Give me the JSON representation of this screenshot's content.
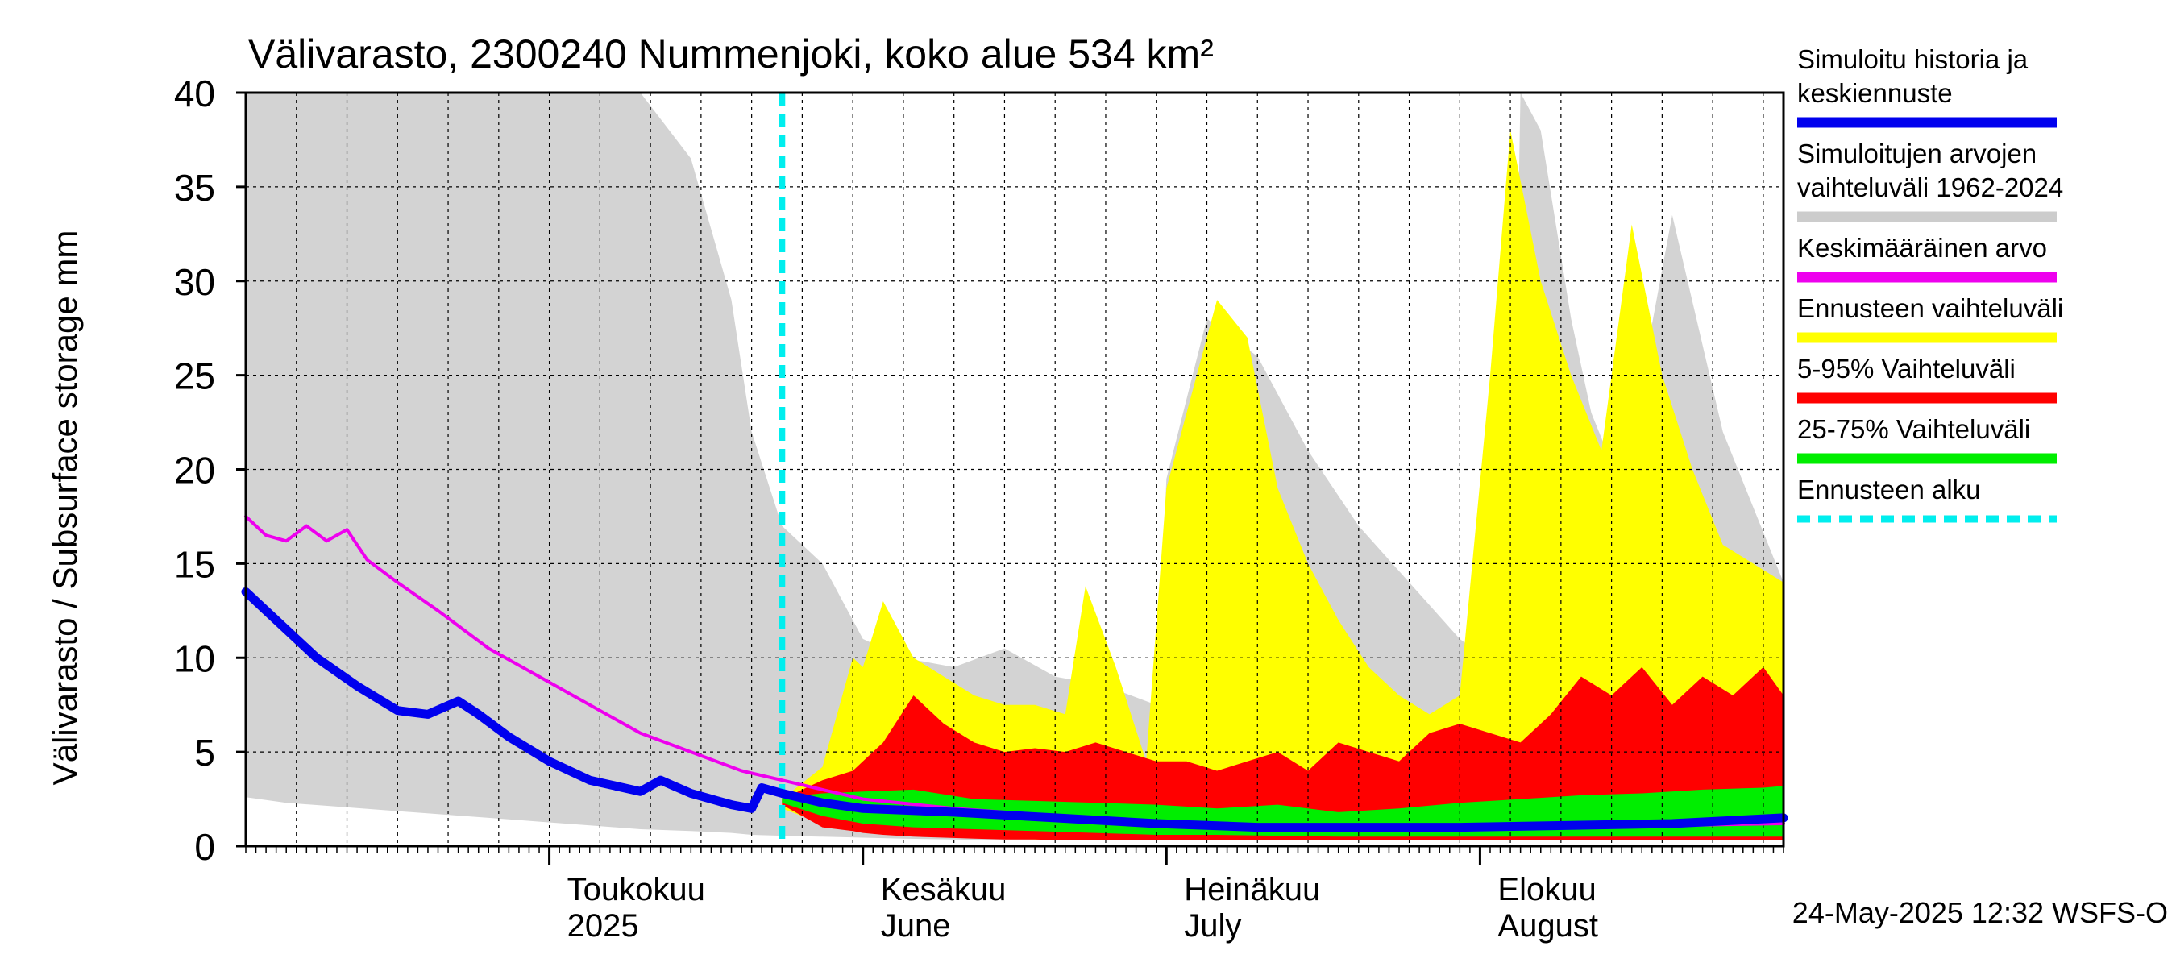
{
  "chart_data": {
    "type": "area",
    "title": "Välivarasto, 2300240 Nummenjoki, koko alue 534 km²",
    "ylabel": "Välivarasto / Subsurface storage  mm",
    "ylim": [
      0,
      40
    ],
    "yticks": [
      0,
      5,
      10,
      15,
      20,
      25,
      30,
      35,
      40
    ],
    "xlim": [
      "2025-04-01",
      "2025-08-31"
    ],
    "grid": true,
    "forecast_start": "2025-05-24",
    "month_labels": [
      {
        "date": "2025-05-01",
        "line1": "Toukokuu",
        "line2": "2025"
      },
      {
        "date": "2025-06-01",
        "line1": "Kesäkuu",
        "line2": "June"
      },
      {
        "date": "2025-07-01",
        "line1": "Heinäkuu",
        "line2": "July"
      },
      {
        "date": "2025-08-01",
        "line1": "Elokuu",
        "line2": "August"
      }
    ],
    "legend_position": "right",
    "legend": [
      {
        "label_lines": [
          "Simuloitu historia ja",
          "keskiennuste"
        ],
        "color": "#0000ee",
        "style": "solid"
      },
      {
        "label_lines": [
          "Simuloitujen arvojen",
          "vaihteluväli 1962-2024"
        ],
        "color": "#cccccc",
        "style": "solid"
      },
      {
        "label_lines": [
          "Keskimääräinen arvo"
        ],
        "color": "#ee00ee",
        "style": "solid"
      },
      {
        "label_lines": [
          "Ennusteen vaihteluväli"
        ],
        "color": "#ffff00",
        "style": "solid"
      },
      {
        "label_lines": [
          "5-95% Vaihteluväli"
        ],
        "color": "#ff0000",
        "style": "solid"
      },
      {
        "label_lines": [
          "25-75% Vaihteluväli"
        ],
        "color": "#00ee00",
        "style": "solid"
      },
      {
        "label_lines": [
          "Ennusteen alku"
        ],
        "color": "#00eeee",
        "style": "dashed"
      }
    ],
    "footer": "24-May-2025 12:32 WSFS-O",
    "series": [
      {
        "name": "Simuloitujen arvojen vaihteluväli 1962-2024",
        "kind": "band",
        "color": "#d3d3d3",
        "x": [
          "2025-04-01",
          "2025-04-05",
          "2025-04-10",
          "2025-04-15",
          "2025-04-20",
          "2025-04-25",
          "2025-04-30",
          "2025-05-05",
          "2025-05-10",
          "2025-05-15",
          "2025-05-19",
          "2025-05-21",
          "2025-05-24",
          "2025-05-28",
          "2025-06-01",
          "2025-06-05",
          "2025-06-10",
          "2025-06-15",
          "2025-06-20",
          "2025-06-25",
          "2025-06-30",
          "2025-07-01",
          "2025-07-05",
          "2025-07-10",
          "2025-07-15",
          "2025-07-20",
          "2025-07-25",
          "2025-07-30",
          "2025-08-04",
          "2025-08-05",
          "2025-08-07",
          "2025-08-10",
          "2025-08-12",
          "2025-08-15",
          "2025-08-20",
          "2025-08-25",
          "2025-08-31"
        ],
        "low": [
          2.6,
          2.3,
          2.1,
          1.9,
          1.7,
          1.5,
          1.3,
          1.1,
          0.9,
          0.8,
          0.7,
          0.6,
          0.55,
          0.5,
          0.45,
          0.4,
          0.35,
          0.3,
          0.3,
          0.3,
          0.3,
          0.3,
          0.3,
          0.3,
          0.3,
          0.3,
          0.3,
          0.3,
          0.3,
          0.3,
          0.3,
          0.3,
          0.3,
          0.3,
          0.3,
          0.3,
          0.3
        ],
        "high": [
          40,
          40,
          40,
          40,
          40,
          40,
          40,
          40,
          40,
          36.5,
          29,
          22,
          17,
          15,
          11,
          10,
          9.5,
          10.5,
          9,
          8.5,
          7.5,
          19.5,
          28,
          26,
          21,
          17,
          14,
          11,
          9,
          40,
          38,
          28,
          23,
          19,
          33.5,
          22,
          14
        ]
      },
      {
        "name": "Ennusteen vaihteluväli",
        "kind": "band",
        "color": "#ffff00",
        "x": [
          "2025-05-24",
          "2025-05-28",
          "2025-05-31",
          "2025-06-01",
          "2025-06-03",
          "2025-06-06",
          "2025-06-09",
          "2025-06-12",
          "2025-06-15",
          "2025-06-18",
          "2025-06-21",
          "2025-06-23",
          "2025-06-26",
          "2025-06-29",
          "2025-07-01",
          "2025-07-04",
          "2025-07-06",
          "2025-07-09",
          "2025-07-12",
          "2025-07-15",
          "2025-07-18",
          "2025-07-21",
          "2025-07-24",
          "2025-07-27",
          "2025-07-30",
          "2025-08-02",
          "2025-08-04",
          "2025-08-07",
          "2025-08-10",
          "2025-08-13",
          "2025-08-16",
          "2025-08-19",
          "2025-08-22",
          "2025-08-25",
          "2025-08-28",
          "2025-08-31"
        ],
        "low": [
          2.0,
          1.2,
          0.9,
          0.8,
          0.7,
          0.6,
          0.5,
          0.45,
          0.4,
          0.35,
          0.3,
          0.3,
          0.3,
          0.3,
          0.3,
          0.3,
          0.3,
          0.3,
          0.3,
          0.3,
          0.3,
          0.3,
          0.3,
          0.3,
          0.3,
          0.3,
          0.3,
          0.3,
          0.3,
          0.3,
          0.3,
          0.3,
          0.3,
          0.3,
          0.3,
          0.3
        ],
        "high": [
          2.5,
          4.2,
          10,
          9.5,
          13,
          10,
          9,
          8,
          7.5,
          7.5,
          7,
          13.8,
          9.5,
          4.5,
          19,
          25,
          29,
          27,
          19,
          15,
          12,
          9.5,
          8,
          7,
          8,
          25,
          38,
          30,
          25,
          21,
          33,
          25,
          20,
          16,
          15,
          14
        ]
      },
      {
        "name": "5-95% Vaihteluväli",
        "kind": "band",
        "color": "#ff0000",
        "x": [
          "2025-05-24",
          "2025-05-28",
          "2025-05-31",
          "2025-06-01",
          "2025-06-03",
          "2025-06-06",
          "2025-06-09",
          "2025-06-12",
          "2025-06-15",
          "2025-06-18",
          "2025-06-21",
          "2025-06-24",
          "2025-06-27",
          "2025-06-30",
          "2025-07-03",
          "2025-07-06",
          "2025-07-09",
          "2025-07-12",
          "2025-07-15",
          "2025-07-18",
          "2025-07-21",
          "2025-07-24",
          "2025-07-27",
          "2025-07-30",
          "2025-08-02",
          "2025-08-05",
          "2025-08-08",
          "2025-08-11",
          "2025-08-14",
          "2025-08-17",
          "2025-08-20",
          "2025-08-23",
          "2025-08-26",
          "2025-08-29",
          "2025-08-31"
        ],
        "low": [
          2.2,
          1.0,
          0.8,
          0.7,
          0.6,
          0.5,
          0.45,
          0.4,
          0.35,
          0.35,
          0.3,
          0.3,
          0.3,
          0.3,
          0.3,
          0.3,
          0.3,
          0.3,
          0.3,
          0.3,
          0.3,
          0.3,
          0.3,
          0.3,
          0.3,
          0.3,
          0.3,
          0.3,
          0.3,
          0.3,
          0.3,
          0.3,
          0.3,
          0.3,
          0.3
        ],
        "high": [
          2.5,
          3.5,
          4.0,
          4.5,
          5.5,
          8.0,
          6.5,
          5.5,
          5.0,
          5.2,
          5.0,
          5.5,
          5.0,
          4.5,
          4.5,
          4.0,
          4.5,
          5.0,
          4.0,
          5.5,
          5.0,
          4.5,
          6.0,
          6.5,
          6.0,
          5.5,
          7.0,
          9.0,
          8.0,
          9.5,
          7.5,
          9.0,
          8.0,
          9.5,
          8.0
        ]
      },
      {
        "name": "25-75% Vaihteluväli",
        "kind": "band",
        "color": "#00ee00",
        "x": [
          "2025-05-24",
          "2025-05-28",
          "2025-06-01",
          "2025-06-06",
          "2025-06-12",
          "2025-06-18",
          "2025-06-24",
          "2025-06-30",
          "2025-07-06",
          "2025-07-12",
          "2025-07-18",
          "2025-07-24",
          "2025-07-30",
          "2025-08-05",
          "2025-08-11",
          "2025-08-17",
          "2025-08-23",
          "2025-08-29",
          "2025-08-31"
        ],
        "low": [
          2.3,
          1.6,
          1.2,
          1.0,
          0.9,
          0.8,
          0.7,
          0.6,
          0.6,
          0.55,
          0.5,
          0.5,
          0.5,
          0.5,
          0.5,
          0.5,
          0.5,
          0.5,
          0.5
        ],
        "high": [
          2.6,
          2.8,
          2.9,
          3.0,
          2.5,
          2.4,
          2.3,
          2.2,
          2.0,
          2.2,
          1.8,
          2.0,
          2.3,
          2.5,
          2.7,
          2.8,
          3.0,
          3.1,
          3.2
        ]
      },
      {
        "name": "Keskimääräinen arvo",
        "kind": "line",
        "color": "#ee00ee",
        "x": [
          "2025-04-01",
          "2025-04-03",
          "2025-04-05",
          "2025-04-07",
          "2025-04-09",
          "2025-04-11",
          "2025-04-13",
          "2025-04-16",
          "2025-04-20",
          "2025-04-25",
          "2025-04-30",
          "2025-05-05",
          "2025-05-10",
          "2025-05-15",
          "2025-05-20",
          "2025-05-24",
          "2025-05-28",
          "2025-06-01",
          "2025-06-10",
          "2025-06-20",
          "2025-06-30",
          "2025-07-10",
          "2025-07-20",
          "2025-07-30",
          "2025-08-10",
          "2025-08-20",
          "2025-08-31"
        ],
        "y": [
          17.5,
          16.5,
          16.2,
          17.0,
          16.2,
          16.8,
          15.2,
          14.0,
          12.5,
          10.5,
          9.0,
          7.5,
          6.0,
          5.0,
          4.0,
          3.5,
          3.0,
          2.5,
          2.0,
          1.6,
          1.3,
          1.1,
          1.0,
          1.0,
          1.0,
          1.1,
          1.2
        ]
      },
      {
        "name": "Simuloitu historia ja keskiennuste",
        "kind": "line",
        "color": "#0000ee",
        "x": [
          "2025-04-01",
          "2025-04-04",
          "2025-04-08",
          "2025-04-12",
          "2025-04-16",
          "2025-04-19",
          "2025-04-22",
          "2025-04-24",
          "2025-04-27",
          "2025-05-01",
          "2025-05-05",
          "2025-05-10",
          "2025-05-12",
          "2025-05-15",
          "2025-05-19",
          "2025-05-21",
          "2025-05-22",
          "2025-05-24",
          "2025-05-28",
          "2025-06-01",
          "2025-06-10",
          "2025-06-20",
          "2025-06-30",
          "2025-07-10",
          "2025-07-20",
          "2025-07-30",
          "2025-08-10",
          "2025-08-20",
          "2025-08-31"
        ],
        "y": [
          13.5,
          12.0,
          10.0,
          8.5,
          7.2,
          7.0,
          7.7,
          7.0,
          5.8,
          4.5,
          3.5,
          2.9,
          3.5,
          2.8,
          2.2,
          2.0,
          3.1,
          2.8,
          2.3,
          2.0,
          1.8,
          1.5,
          1.2,
          1.0,
          1.0,
          1.0,
          1.1,
          1.2,
          1.5
        ]
      }
    ]
  }
}
